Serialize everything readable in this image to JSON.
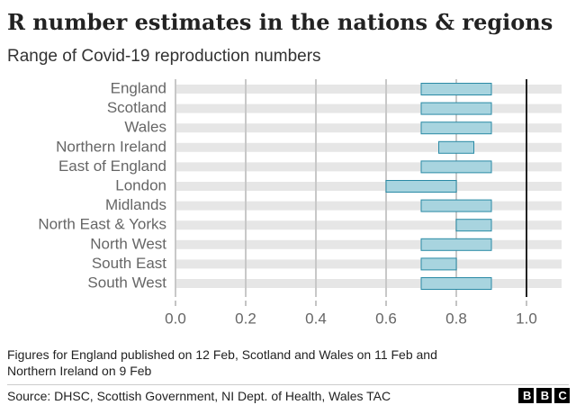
{
  "chart_data": {
    "type": "range-bar",
    "title": "R number estimates in the nations & regions",
    "subtitle": "Range of Covid-19 reproduction numbers",
    "categories": [
      "England",
      "Scotland",
      "Wales",
      "Northern Ireland",
      "East of England",
      "London",
      "Midlands",
      "North East & Yorks",
      "North West",
      "South East",
      "South West"
    ],
    "low": [
      0.7,
      0.7,
      0.7,
      0.75,
      0.7,
      0.6,
      0.7,
      0.8,
      0.7,
      0.7,
      0.7
    ],
    "high": [
      0.9,
      0.9,
      0.9,
      0.85,
      0.9,
      0.8,
      0.9,
      0.9,
      0.9,
      0.8,
      0.9
    ],
    "color": "#a8d4df",
    "edge_color": "#2a8aa5",
    "xlim": [
      0,
      1.1
    ],
    "xticks": [
      {
        "value": 0,
        "label": "0.0"
      },
      0.2,
      0.4,
      0.6,
      0.8,
      {
        "value": 1,
        "label": "1.0"
      }
    ],
    "reference_line": 1,
    "grid": true,
    "note": [
      "Figures for England published on 12 Feb, Scotland and Wales on 11 Feb and",
      "Northern Ireland on 9 Feb"
    ],
    "source": "Source: DHSC, Scottish Government, NI Dept. of Health, Wales TAC",
    "logo": "BBC"
  }
}
